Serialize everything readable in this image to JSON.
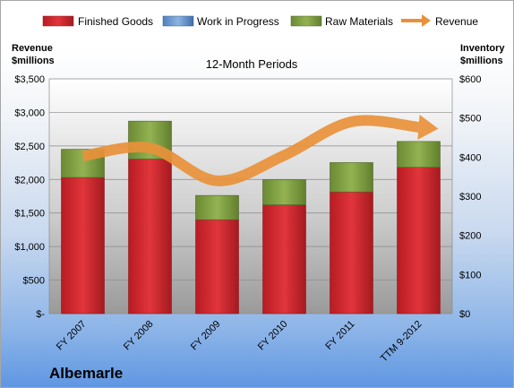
{
  "company": "Albemarle",
  "chart_data": {
    "type": "bar",
    "title": "12-Month Periods",
    "categories": [
      "FY 2007",
      "FY 2008",
      "FY 2009",
      "FY 2010",
      "FY 2011",
      "TTM 9-2012"
    ],
    "stacked": true,
    "legend_position": "top",
    "grid": true,
    "y_left": {
      "title_line1": "Revenue",
      "title_line2": "$millions",
      "range": [
        0,
        3500
      ],
      "ticks": [
        "$-",
        "$500",
        "$1,000",
        "$1,500",
        "$2,000",
        "$2,500",
        "$3,000",
        "$3,500"
      ],
      "tick_values": [
        0,
        500,
        1000,
        1500,
        2000,
        2500,
        3000,
        3500
      ]
    },
    "y_right": {
      "title_line1": "Inventory",
      "title_line2": "$millions",
      "range": [
        0,
        600
      ],
      "ticks": [
        "$0",
        "$100",
        "$200",
        "$300",
        "$400",
        "$500",
        "$600"
      ],
      "tick_values": [
        0,
        100,
        200,
        300,
        400,
        500,
        600
      ]
    },
    "series": [
      {
        "name": "Finished Goods",
        "axis": "right",
        "color": "#c0272d",
        "values": [
          348,
          395,
          240,
          278,
          311,
          374
        ]
      },
      {
        "name": "Work in Progress",
        "axis": "right",
        "color": "#4f81bd",
        "values": [
          0,
          0,
          0,
          0,
          0,
          0
        ]
      },
      {
        "name": "Raw Materials",
        "axis": "right",
        "color": "#77933c",
        "values": [
          72,
          97,
          62,
          64,
          75,
          66
        ]
      },
      {
        "name": "Revenue",
        "axis": "left",
        "type": "line",
        "color": "#e8913a",
        "values": [
          2350,
          2470,
          1980,
          2360,
          2860,
          2780
        ]
      }
    ]
  }
}
